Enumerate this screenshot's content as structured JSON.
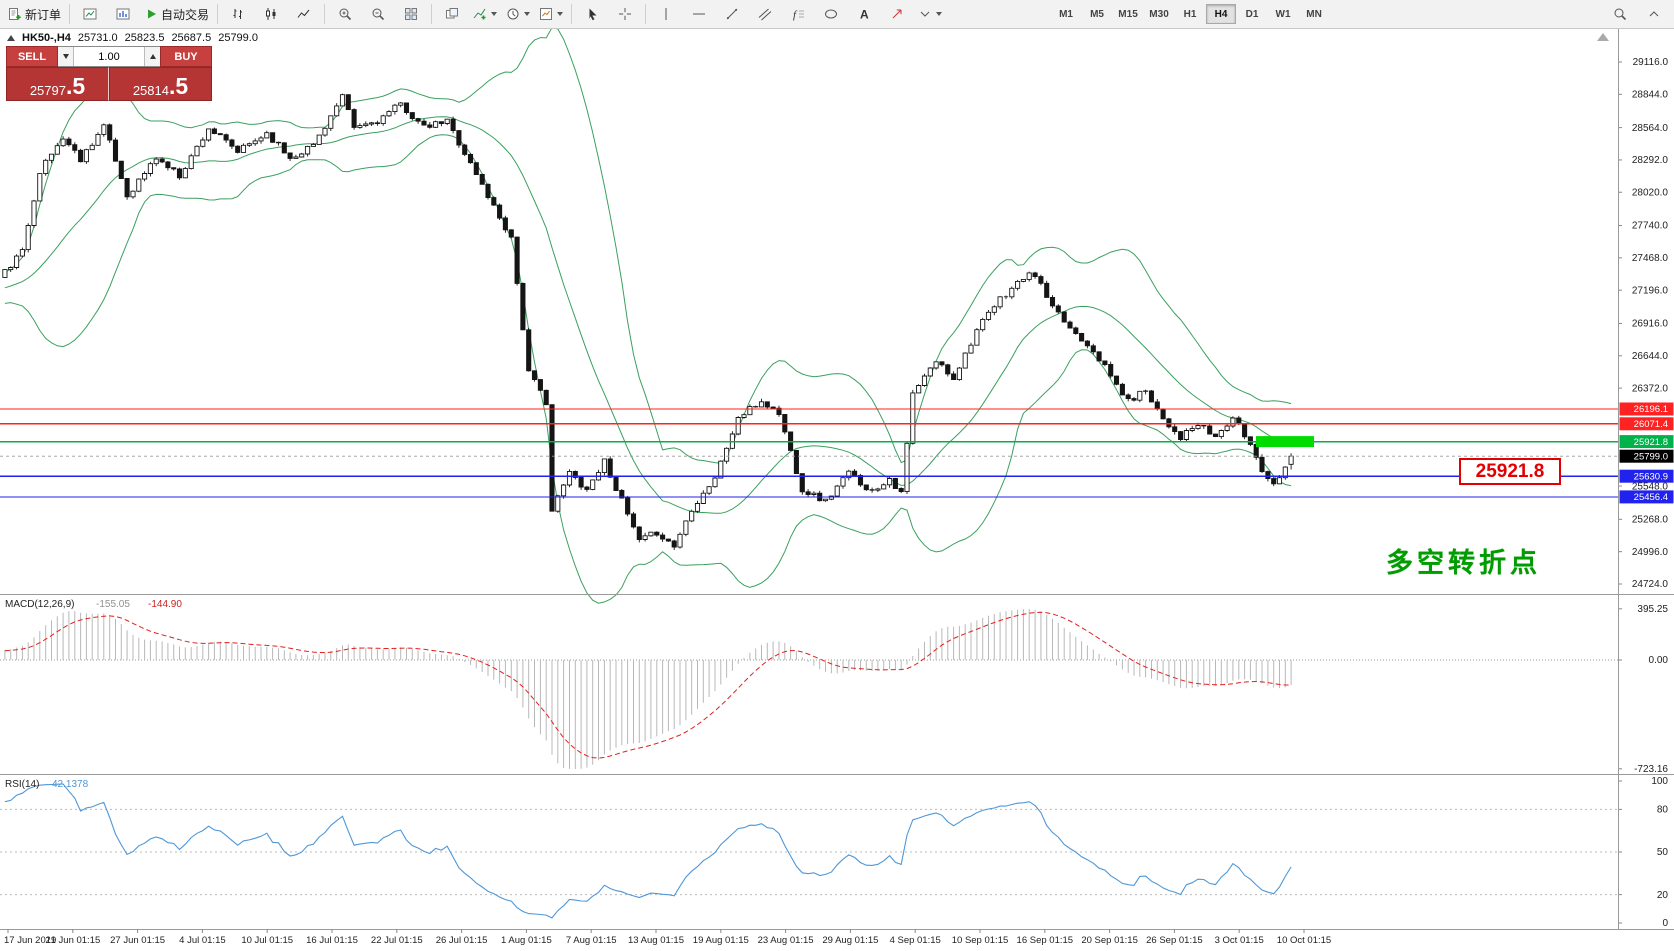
{
  "toolbar": {
    "buttons": [
      {
        "icon": "new-order",
        "label": "新订单",
        "name": "new-order-button"
      },
      {
        "sep": true
      },
      {
        "icon": "charts-window"
      },
      {
        "icon": "market-watch"
      },
      {
        "icon": "autotrade",
        "label": "自动交易",
        "name": "autotrade-button"
      },
      {
        "sep": true
      },
      {
        "icon": "bar-chart"
      },
      {
        "icon": "candle-chart"
      },
      {
        "icon": "line-chart"
      },
      {
        "sep": true
      },
      {
        "icon": "zoom-in"
      },
      {
        "icon": "zoom-out"
      },
      {
        "icon": "tile-windows"
      },
      {
        "sep": true
      },
      {
        "icon": "cascade"
      },
      {
        "icon": "indicators",
        "dropdown": true
      },
      {
        "icon": "periods",
        "dropdown": true
      },
      {
        "icon": "templates",
        "dropdown": true
      },
      {
        "sep": true
      },
      {
        "icon": "cursor"
      },
      {
        "icon": "crosshair"
      },
      {
        "sep": true
      },
      {
        "icon": "vline"
      },
      {
        "icon": "hline"
      },
      {
        "icon": "trendline"
      },
      {
        "icon": "channel"
      },
      {
        "icon": "fibo"
      },
      {
        "icon": "shapes"
      },
      {
        "icon": "text-tool"
      },
      {
        "icon": "arrow-tool"
      },
      {
        "icon": "more",
        "dropdown": true
      }
    ],
    "timeframes": [
      "M1",
      "M5",
      "M15",
      "M30",
      "H1",
      "H4",
      "D1",
      "W1",
      "MN"
    ],
    "active_timeframe": "H4",
    "right_icons": [
      "search",
      "chevron-up"
    ]
  },
  "symbol_line": {
    "symbol": "HK50-,H4",
    "open": "25731.0",
    "high": "25823.5",
    "low": "25687.5",
    "close": "25799.0"
  },
  "trade": {
    "sell_label": "SELL",
    "buy_label": "BUY",
    "volume": "1.00",
    "sell_price": "25797.5",
    "buy_price": "25814.5"
  },
  "annotations": {
    "callout_text": "25921.8",
    "note_text": "多空转折点"
  },
  "chart_data": {
    "type": "candlestick",
    "symbol": "HK50-",
    "period": "H4",
    "candle_count": 222,
    "price_axis": {
      "ticks": [
        "29116.0",
        "28844.0",
        "28564.0",
        "28292.0",
        "28020.0",
        "27740.0",
        "27468.0",
        "27196.0",
        "26916.0",
        "26644.0",
        "26372.0",
        "25548.0",
        "25268.0",
        "24996.0",
        "24724.0"
      ]
    },
    "close_keyframes": [
      [
        0,
        27350
      ],
      [
        3,
        27520
      ],
      [
        6,
        28200
      ],
      [
        10,
        28480
      ],
      [
        13,
        28300
      ],
      [
        17,
        28580
      ],
      [
        21,
        27990
      ],
      [
        26,
        28310
      ],
      [
        30,
        28160
      ],
      [
        35,
        28560
      ],
      [
        40,
        28360
      ],
      [
        45,
        28520
      ],
      [
        49,
        28310
      ],
      [
        53,
        28420
      ],
      [
        58,
        28820
      ],
      [
        60,
        28560
      ],
      [
        64,
        28620
      ],
      [
        68,
        28760
      ],
      [
        72,
        28560
      ],
      [
        76,
        28620
      ],
      [
        80,
        28260
      ],
      [
        84,
        27900
      ],
      [
        87,
        27640
      ],
      [
        90,
        26500
      ],
      [
        93,
        26260
      ],
      [
        94,
        25340
      ],
      [
        97,
        25660
      ],
      [
        100,
        25520
      ],
      [
        103,
        25760
      ],
      [
        106,
        25420
      ],
      [
        109,
        25080
      ],
      [
        112,
        25160
      ],
      [
        115,
        25040
      ],
      [
        118,
        25360
      ],
      [
        122,
        25620
      ],
      [
        126,
        26120
      ],
      [
        130,
        26260
      ],
      [
        133,
        26160
      ],
      [
        137,
        25520
      ],
      [
        141,
        25420
      ],
      [
        145,
        25660
      ],
      [
        149,
        25500
      ],
      [
        152,
        25620
      ],
      [
        154,
        25480
      ],
      [
        156,
        26320
      ],
      [
        160,
        26600
      ],
      [
        163,
        26460
      ],
      [
        167,
        26860
      ],
      [
        171,
        27120
      ],
      [
        175,
        27300
      ],
      [
        177,
        27330
      ],
      [
        180,
        27040
      ],
      [
        183,
        26880
      ],
      [
        187,
        26700
      ],
      [
        190,
        26470
      ],
      [
        193,
        26260
      ],
      [
        196,
        26360
      ],
      [
        199,
        26120
      ],
      [
        202,
        25960
      ],
      [
        205,
        26060
      ],
      [
        208,
        25960
      ],
      [
        211,
        26120
      ],
      [
        214,
        25900
      ],
      [
        216,
        25690
      ],
      [
        218,
        25560
      ],
      [
        220,
        25730
      ],
      [
        221,
        25799
      ]
    ],
    "pad": {
      "count": 40,
      "from": 26900,
      "to": 27300,
      "jitter": 50
    },
    "noise": {
      "seed": 11,
      "body_jitter": 55,
      "wick": 26
    },
    "bollinger": {
      "period": 20,
      "deviation": 2
    },
    "hlines": [
      {
        "price": 26196.1,
        "label": "26196.1",
        "color": "#ff2222"
      },
      {
        "price": 26071.4,
        "label": "26071.4",
        "color": "#ff2222"
      },
      {
        "price": 25921.8,
        "label": "25921.8",
        "color": "#00b24a",
        "highlight": true
      },
      {
        "price": 25630.9,
        "label": "25630.9",
        "color": "#2222ee"
      },
      {
        "price": 25456.4,
        "label": "25456.4",
        "color": "#2222ee"
      }
    ],
    "current_price": {
      "label": "25799.0",
      "tag_color": "#000000"
    },
    "macd": {
      "label": "MACD(12,26,9)",
      "value_main": "-155.05",
      "value_signal": "-144.90",
      "axis_max": "395.25",
      "axis_zero": "0.00",
      "axis_min": "-723.16",
      "fast": 12,
      "slow": 26,
      "signal": 9
    },
    "rsi": {
      "label": "RSI(14)",
      "value": "42.1378",
      "period": 14,
      "levels": [
        80,
        50,
        20
      ],
      "axis": [
        "100",
        "80",
        "50",
        "20",
        "0"
      ]
    },
    "x_axis_labels": [
      "17 Jun 2019",
      "21 Jun 01:15",
      "27 Jun 01:15",
      "4 Jul 01:15",
      "10 Jul 01:15",
      "16 Jul 01:15",
      "22 Jul 01:15",
      "26 Jul 01:15",
      "1 Aug 01:15",
      "7 Aug 01:15",
      "13 Aug 01:15",
      "19 Aug 01:15",
      "23 Aug 01:15",
      "29 Aug 01:15",
      "4 Sep 01:15",
      "10 Sep 01:15",
      "16 Sep 01:15",
      "20 Sep 01:15",
      "26 Sep 01:15",
      "3 Oct 01:15",
      "10 Oct 01:15"
    ]
  }
}
